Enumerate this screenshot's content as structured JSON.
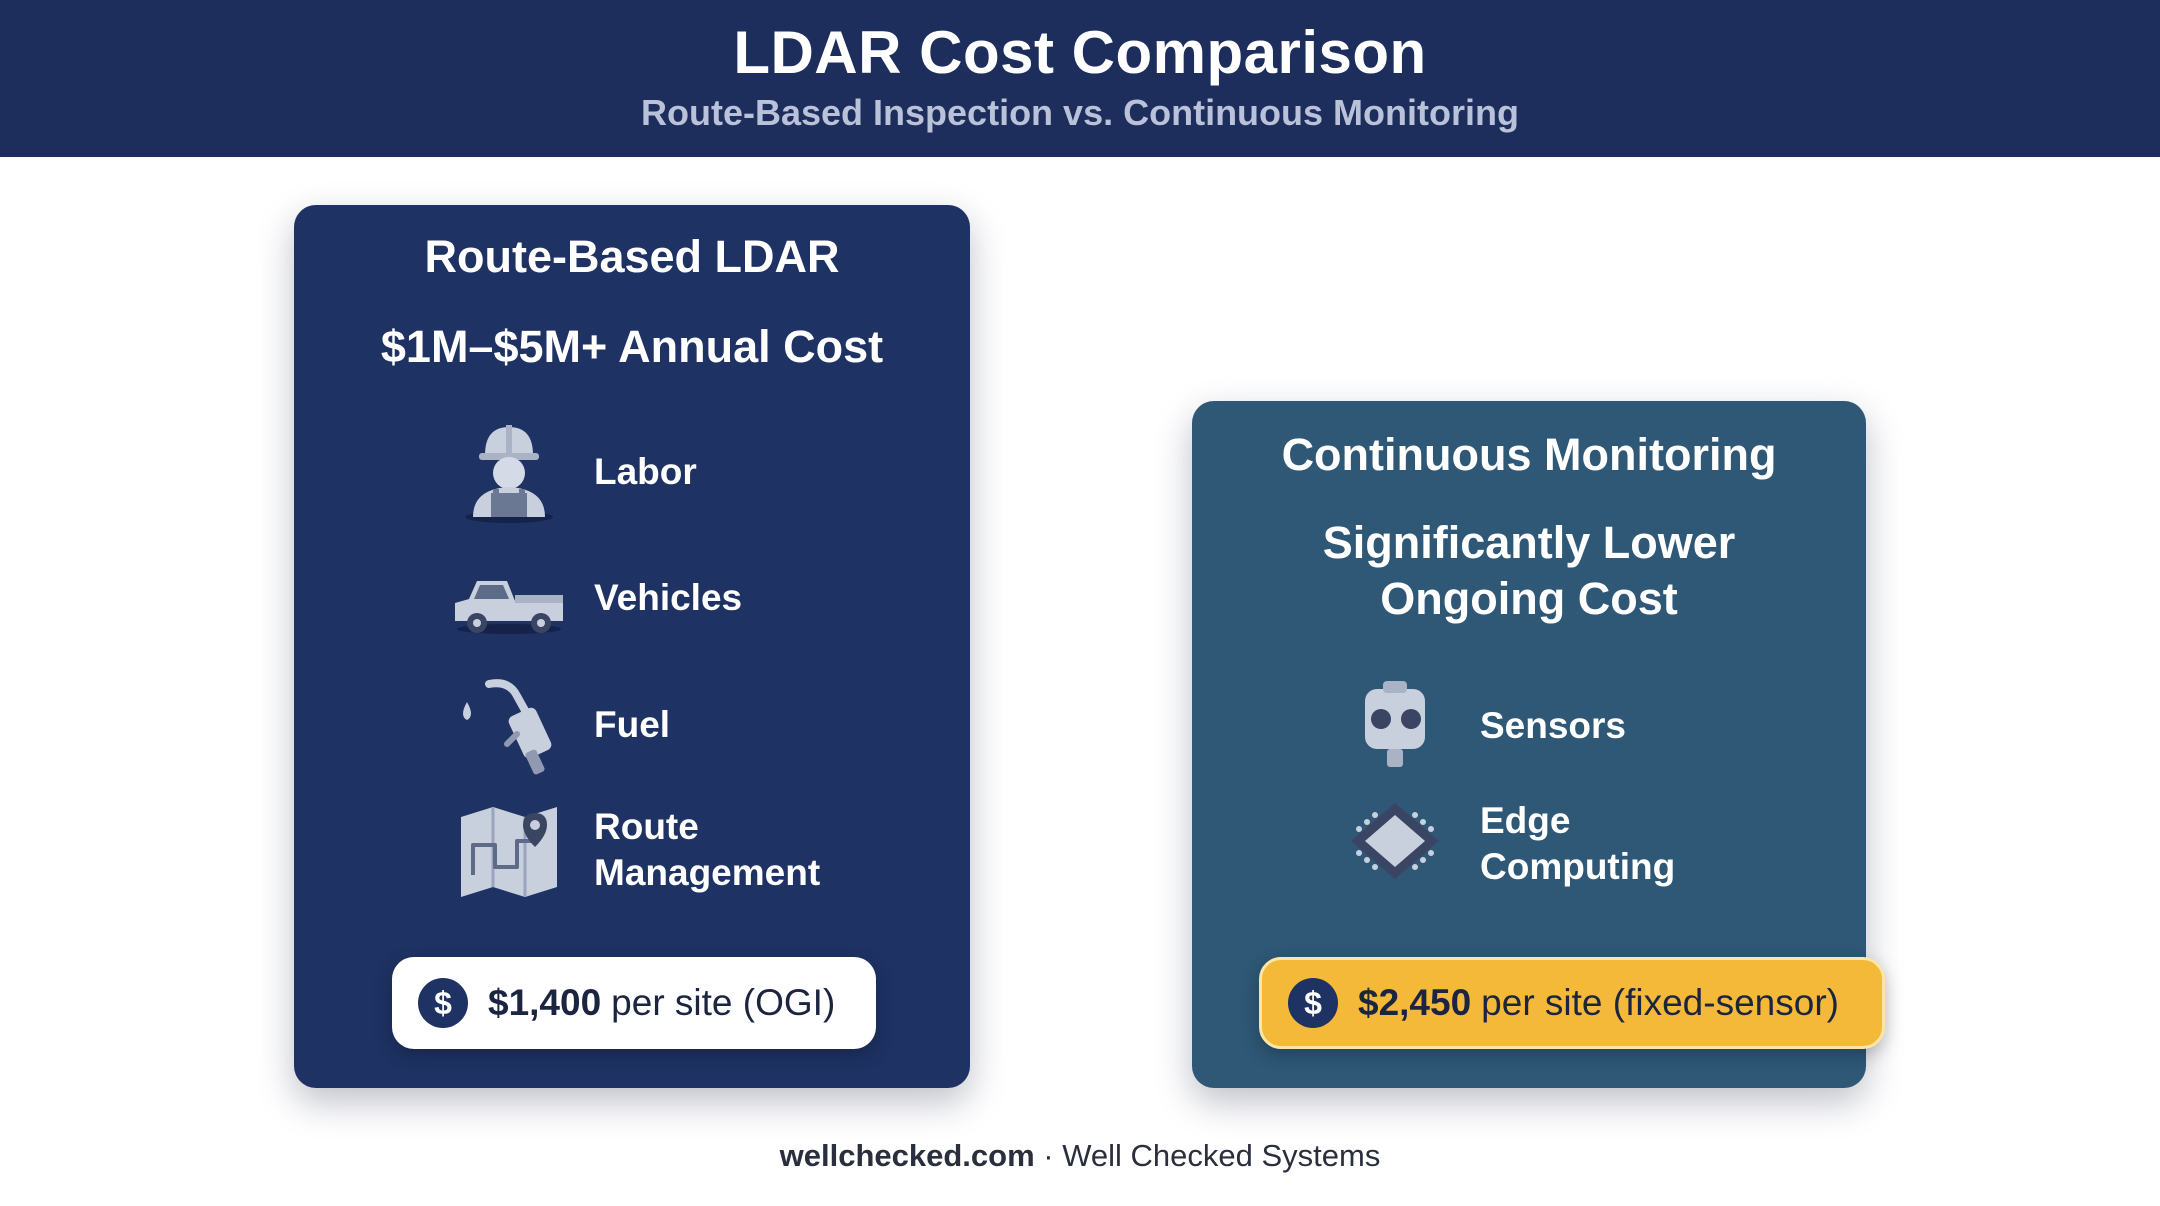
{
  "header": {
    "title": "LDAR Cost Comparison",
    "subtitle": "Route-Based Inspection vs. Continuous Monitoring"
  },
  "left_card": {
    "title": "Route-Based LDAR",
    "cost": "$1M–$5M+ Annual Cost",
    "items": [
      {
        "icon": "worker-icon",
        "label": "Labor"
      },
      {
        "icon": "pickup-truck-icon",
        "label": "Vehicles"
      },
      {
        "icon": "fuel-nozzle-icon",
        "label": "Fuel"
      },
      {
        "icon": "route-map-icon",
        "label": "Route Management"
      }
    ],
    "price": {
      "icon": "dollar-coin-icon",
      "amount": "$1,400",
      "unit": "per site (OGI)"
    }
  },
  "right_card": {
    "title": "Continuous Monitoring",
    "cost": "Significantly Lower Ongoing Cost",
    "items": [
      {
        "icon": "sensor-icon",
        "label": "Sensors"
      },
      {
        "icon": "chip-icon",
        "label": "Edge Computing"
      }
    ],
    "price": {
      "icon": "dollar-coin-icon",
      "amount": "$2,450",
      "unit": "per site (fixed-sensor)"
    }
  },
  "footer": {
    "site": "wellchecked.com",
    "separator": " · ",
    "company": "Well Checked Systems"
  },
  "colors": {
    "header_bg": "#1d2d5c",
    "left_card_bg": "#1e3263",
    "right_card_bg": "#2e5876",
    "gold_pill": "#f5b93a",
    "coin": "#1e3263"
  }
}
